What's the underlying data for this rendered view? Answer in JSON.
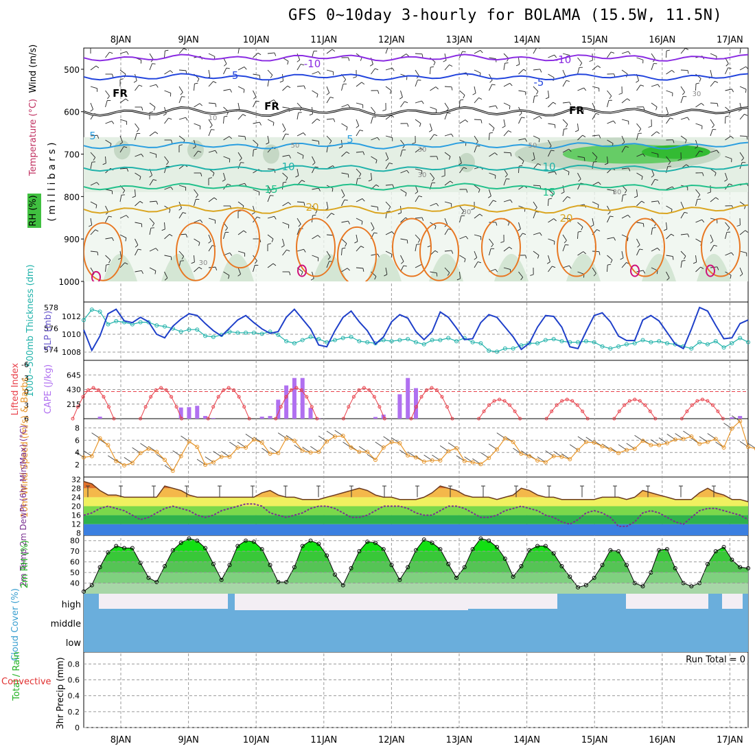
{
  "title": "GFS 0~10day 3-hourly for BOLAMA (15.5W, 11.5N)",
  "days": [
    "8JAN",
    "9JAN",
    "10JAN",
    "11JAN",
    "12JAN",
    "13JAN",
    "14JAN",
    "15JAN",
    "16JAN",
    "17JAN"
  ],
  "panels": {
    "upper": {
      "ylabel_wind": "Wind (m/s)",
      "ylabel_temp": "Temperature (°C)",
      "ylabel_rh": "RH (%)",
      "ylabel_mb": "( m i l l i b a r s )",
      "yticks": [
        500,
        600,
        700,
        800,
        900,
        1000
      ],
      "contour_labels": [
        "-10",
        "-10",
        "-5",
        "-5",
        "FR",
        "FR",
        "FR",
        "5",
        "5",
        "10",
        "10",
        "15",
        "15",
        "20",
        "20",
        "50",
        "30",
        "50",
        "30",
        "10",
        "30",
        "30",
        "30",
        "30"
      ]
    },
    "thickness": {
      "ylabel_left": "1000~500mb Thickness (dm)",
      "ylabel_right": "SLP (mb)",
      "left_ticks": [
        574,
        576,
        578
      ],
      "right_ticks": [
        1008,
        1010,
        1012
      ]
    },
    "cape": {
      "ylabel_left": "Lifted Index",
      "ylabel_right": "CAPE (J/kg)",
      "left_ticks": [
        -6,
        -3,
        0,
        3,
        6
      ],
      "right_ticks": [
        215,
        430,
        645
      ]
    },
    "wind10": {
      "ylabel": "10m Wind Speed (m/s) & Barbs",
      "ticks": [
        2,
        4,
        6,
        8
      ]
    },
    "temp2m": {
      "ylabel": "2m Temp 2m DewPt (6hr Min/Max) (°C)",
      "ticks": [
        8,
        12,
        16,
        20,
        24,
        28,
        32
      ]
    },
    "rh2m": {
      "ylabel": "2m RH (%)",
      "ticks": [
        40,
        50,
        60,
        70,
        80
      ]
    },
    "cloud": {
      "ylabel": "Cloud Cover (%)",
      "levels": [
        "high",
        "middle",
        "low"
      ]
    },
    "precip": {
      "ylabel_total": "Total / Rain",
      "ylabel_conv": "Convective",
      "ylabel_main": "3hr Precip (mm)",
      "ticks": [
        0,
        0.2,
        0.4,
        0.6,
        0.8
      ],
      "run_total": "Run Total = 0"
    }
  },
  "colors": {
    "slp": "#1e3fc9",
    "thickness": "#20b2aa",
    "lifted": "#e8404a",
    "cape": "#b070f0",
    "wind": "#e8962a",
    "rh_green": "#1fd01f",
    "cloud": "#6aaedc",
    "grid": "#999999"
  },
  "chart_data": [
    {
      "type": "line",
      "title": "3-hourly SLP (mb)",
      "x_start": "8JAN",
      "step_hours": 3,
      "series": [
        {
          "name": "SLP (mb)",
          "values": [
            1010.5,
            1008.2,
            1009.8,
            1012.3,
            1012.8,
            1011.5,
            1011.3,
            1011.9,
            1011.4,
            1010.0,
            1009.6,
            1010.9,
            1011.7,
            1012.3,
            1012.1,
            1011.2,
            1010.4,
            1009.8,
            1010.7,
            1011.6,
            1012.1,
            1011.3,
            1010.6,
            1010.1,
            1010.3,
            1011.9,
            1012.8,
            1011.7,
            1010.6,
            1008.8,
            1008.6,
            1010.4,
            1011.9,
            1012.6,
            1011.4,
            1010.4,
            1008.9,
            1009.7,
            1011.4,
            1012.2,
            1011.8,
            1010.3,
            1009.4,
            1010.3,
            1012.5,
            1011.9,
            1010.7,
            1009.4,
            1009.5,
            1011.3,
            1012.2,
            1011.9,
            1010.8,
            1009.7,
            1008.3,
            1009.0,
            1010.8,
            1012.1,
            1012.0,
            1010.8,
            1008.6,
            1008.4,
            1010.3,
            1012.1,
            1012.4,
            1011.4,
            1009.8,
            1009.3,
            1009.3,
            1011.6,
            1012.1,
            1011.5,
            1010.2,
            1008.9,
            1008.4,
            1010.6,
            1013.0,
            1012.6,
            1011.0,
            1009.5,
            1009.6,
            1011.2,
            1011.6
          ]
        }
      ]
    },
    {
      "type": "line",
      "title": "1000~500mb Thickness (dm)",
      "series": [
        {
          "name": "Thickness",
          "values": [
            576.8,
            577.8,
            577.6,
            576.4,
            576.7,
            576.6,
            576.4,
            576.6,
            576.6,
            576.3,
            576.2,
            576.0,
            575.7,
            575.9,
            575.9,
            575.3,
            575.2,
            575.4,
            575.7,
            575.6,
            575.6,
            575.6,
            575.5,
            575.7,
            575.4,
            574.8,
            574.6,
            574.9,
            575.2,
            575.0,
            574.7,
            574.9,
            575.1,
            575.2,
            574.8,
            574.7,
            574.6,
            574.9,
            574.8,
            574.9,
            575.0,
            574.7,
            574.5,
            574.9,
            574.9,
            575.1,
            574.8,
            575.1,
            574.7,
            574.6,
            573.9,
            573.8,
            574.1,
            574.1,
            574.4,
            574.6,
            574.6,
            574.9,
            575.0,
            574.8,
            574.7,
            574.7,
            574.8,
            574.7,
            574.3,
            574.1,
            574.3,
            574.5,
            574.6,
            574.9,
            574.7,
            574.8,
            574.6,
            574.5,
            574.3,
            574.1,
            574.7,
            574.5,
            574.8,
            574.2,
            574.6,
            575.1,
            574.7
          ]
        }
      ]
    },
    {
      "type": "bar",
      "title": "CAPE (J/kg)",
      "series": [
        {
          "name": "CAPE",
          "values": [
            0,
            0,
            30,
            0,
            0,
            0,
            0,
            0,
            0,
            0,
            0,
            0,
            165,
            170,
            190,
            40,
            10,
            0,
            0,
            0,
            0,
            0,
            30,
            40,
            280,
            490,
            600,
            600,
            160,
            10,
            0,
            0,
            0,
            0,
            0,
            0,
            25,
            60,
            0,
            360,
            600,
            450,
            0,
            0,
            0,
            0,
            0,
            0,
            0,
            0,
            0,
            0,
            0,
            0,
            0,
            0,
            0,
            0,
            0,
            0,
            0,
            0,
            0,
            0,
            0,
            0,
            0,
            0,
            0,
            0,
            0,
            0,
            0,
            0,
            0,
            0,
            0,
            0,
            0,
            0,
            20,
            40,
            0
          ]
        }
      ]
    },
    {
      "type": "line",
      "title": "10m Wind Speed (m/s)",
      "series": [
        {
          "name": "Wind speed",
          "values": [
            3.2,
            3.4,
            6.3,
            5.2,
            2.6,
            1.9,
            2.3,
            3.9,
            4.6,
            4.1,
            2.8,
            1.0,
            3.4,
            5.8,
            4.9,
            2.0,
            2.4,
            3.3,
            3.3,
            4.8,
            4.8,
            6.1,
            5.6,
            3.8,
            3.9,
            6.3,
            5.9,
            4.3,
            4.0,
            4.1,
            5.8,
            6.6,
            6.7,
            4.8,
            4.1,
            4.1,
            2.8,
            4.8,
            5.7,
            5.5,
            3.5,
            3.2,
            2.5,
            2.7,
            2.7,
            4.2,
            4.7,
            2.6,
            2.4,
            2.1,
            3.1,
            4.5,
            6.3,
            5.7,
            3.8,
            3.4,
            2.7,
            2.4,
            3.4,
            3.3,
            2.9,
            4.4,
            5.7,
            5.6,
            5.0,
            4.5,
            3.9,
            4.4,
            4.6,
            5.9,
            5.2,
            5.2,
            5.5,
            6.1,
            6.2,
            6.6,
            5.4,
            5.7,
            6.2,
            4.8,
            7.9,
            9.1,
            4.9,
            4.6
          ]
        }
      ]
    },
    {
      "type": "area",
      "title": "2m Temp (°C)",
      "series": [
        {
          "name": "2m Temp",
          "values": [
            31,
            30,
            27,
            25,
            25,
            24,
            24,
            24,
            24,
            24,
            29,
            28,
            27,
            25,
            24,
            24,
            24,
            24,
            24,
            24,
            24,
            24,
            26,
            27,
            25,
            24,
            24,
            23,
            23,
            23,
            24,
            25,
            26,
            27,
            28,
            27,
            25,
            24,
            24,
            23,
            23,
            23,
            24,
            26,
            29,
            28,
            27,
            25,
            24,
            24,
            24,
            23,
            24,
            25,
            28,
            27,
            25,
            24,
            24,
            23,
            23,
            23,
            23,
            23,
            24,
            24,
            24,
            23,
            24,
            27,
            26,
            25,
            24,
            23,
            23,
            23,
            26,
            28,
            26,
            25,
            23,
            23,
            22
          ]
        },
        {
          "name": "2m DewPt",
          "values": [
            16,
            17,
            19,
            20,
            19,
            18,
            16,
            14,
            15,
            17,
            19,
            20,
            19,
            18,
            16,
            15,
            16,
            18,
            19,
            20,
            21,
            21,
            20,
            17,
            16,
            15,
            16,
            17,
            19,
            20,
            20,
            19,
            17,
            15,
            15,
            16,
            18,
            20,
            20,
            20,
            19,
            17,
            16,
            16,
            18,
            20,
            20,
            19,
            17,
            15,
            15,
            16,
            18,
            19,
            20,
            19,
            18,
            16,
            15,
            13,
            12,
            14,
            17,
            18,
            17,
            15,
            11,
            11,
            13,
            17,
            18,
            17,
            15,
            13,
            12,
            15,
            18,
            19,
            19,
            18,
            17,
            16,
            14
          ]
        }
      ]
    },
    {
      "type": "area",
      "title": "2m RH (%)",
      "series": [
        {
          "name": "2m RH",
          "values": [
            32,
            38,
            55,
            69,
            75,
            73,
            73,
            59,
            45,
            41,
            56,
            71,
            78,
            82,
            80,
            73,
            58,
            43,
            57,
            75,
            80,
            79,
            72,
            57,
            41,
            41,
            55,
            75,
            80,
            77,
            66,
            48,
            38,
            54,
            70,
            79,
            78,
            72,
            57,
            43,
            55,
            71,
            81,
            78,
            72,
            58,
            45,
            55,
            72,
            82,
            80,
            74,
            63,
            46,
            56,
            71,
            75,
            75,
            68,
            56,
            46,
            36,
            38,
            45,
            57,
            71,
            70,
            57,
            40,
            37,
            50,
            71,
            72,
            54,
            40,
            37,
            40,
            58,
            70,
            74,
            62,
            55,
            54
          ]
        }
      ]
    },
    {
      "type": "bar",
      "title": "3hr Precip (mm)",
      "series": [
        {
          "name": "Precip",
          "values": [
            0,
            0,
            0,
            0,
            0,
            0,
            0,
            0,
            0,
            0
          ]
        }
      ]
    }
  ]
}
